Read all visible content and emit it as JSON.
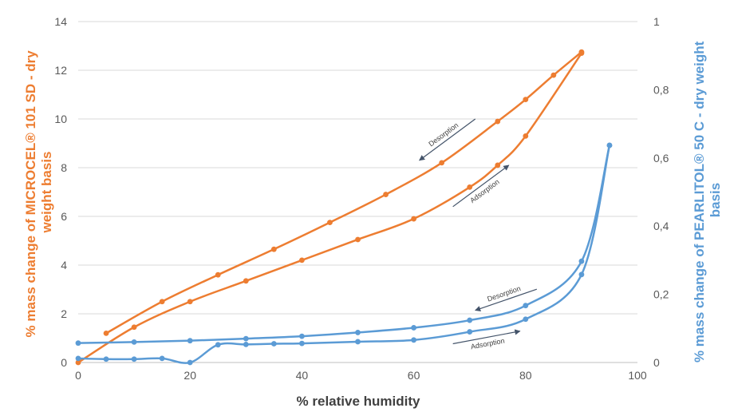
{
  "chart_data": {
    "type": "line",
    "xlabel": "% relative humidity",
    "ylabel_left": "% mass change of MICROCEL® 101 SD - dry weight basis",
    "ylabel_left_lines": [
      "% mass change of MICROCEL® 101 SD - dry",
      "weight basis"
    ],
    "ylabel_right": "% mass change of PEARLITOL® 50 C - dry weight basis",
    "ylabel_right_lines": [
      "% mass change of PEARLITOL® 50 C - dry weight",
      "basis"
    ],
    "xlim": [
      0,
      100
    ],
    "ylim_left": [
      0,
      14
    ],
    "ylim_right": [
      0,
      1
    ],
    "x_ticks": [
      "0",
      "20",
      "40",
      "60",
      "80",
      "100"
    ],
    "y_left_ticks": [
      "0",
      "2",
      "4",
      "6",
      "8",
      "10",
      "12",
      "14"
    ],
    "y_right_ticks": [
      "0",
      "0,2",
      "0,4",
      "0,6",
      "0,8",
      "1"
    ],
    "grid": true,
    "colors": {
      "microcel": "#ED7D31",
      "pearlitol": "#5B9BD5",
      "arrow": "#44546A"
    },
    "series": [
      {
        "name": "MICROCEL® 101 SD desorption",
        "axis": "left",
        "x": [
          5,
          15,
          25,
          35,
          45,
          55,
          65,
          75,
          80,
          85,
          90
        ],
        "y": [
          1.2,
          2.5,
          3.6,
          4.65,
          5.75,
          6.9,
          8.2,
          9.9,
          10.8,
          11.8,
          12.75
        ]
      },
      {
        "name": "MICROCEL® 101 SD adsorption",
        "axis": "left",
        "x": [
          0,
          10,
          20,
          30,
          40,
          50,
          60,
          70,
          75,
          80,
          90
        ],
        "y": [
          0,
          1.45,
          2.5,
          3.35,
          4.2,
          5.05,
          5.9,
          7.2,
          8.1,
          9.3,
          12.7
        ]
      },
      {
        "name": "PEARLITOL® 50 C desorption",
        "axis": "right",
        "x": [
          0,
          10,
          20,
          30,
          40,
          50,
          60,
          70,
          80,
          90,
          95
        ],
        "y": [
          0.057,
          0.06,
          0.064,
          0.07,
          0.077,
          0.088,
          0.102,
          0.124,
          0.167,
          0.297,
          0.637
        ]
      },
      {
        "name": "PEARLITOL® 50 C adsorption",
        "axis": "right",
        "x": [
          0,
          5,
          10,
          15,
          20,
          25,
          30,
          35,
          40,
          50,
          60,
          70,
          80,
          90,
          95
        ],
        "y": [
          0.012,
          0.01,
          0.01,
          0.012,
          0.0,
          0.052,
          0.053,
          0.055,
          0.056,
          0.061,
          0.066,
          0.09,
          0.127,
          0.258,
          0.637
        ]
      }
    ],
    "annotations": [
      {
        "text": "Desorption",
        "series": "MICROCEL® 101 SD desorption",
        "direction": "left",
        "x0": 71,
        "y0": 10.0,
        "x1": 61,
        "y1": 8.3
      },
      {
        "text": "Adsorption",
        "series": "MICROCEL® 101 SD adsorption",
        "direction": "right",
        "x0": 67,
        "y0": 6.4,
        "x1": 77,
        "y1": 8.1
      },
      {
        "text": "Desorption",
        "series": "PEARLITOL® 50 C desorption",
        "direction": "left",
        "x0": 82,
        "y0": 0.215,
        "x1": 71,
        "y1": 0.153
      },
      {
        "text": "Adsorption",
        "series": "PEARLITOL® 50 C adsorption",
        "direction": "right",
        "x0": 67,
        "y0": 0.055,
        "x1": 79,
        "y1": 0.092
      }
    ]
  }
}
